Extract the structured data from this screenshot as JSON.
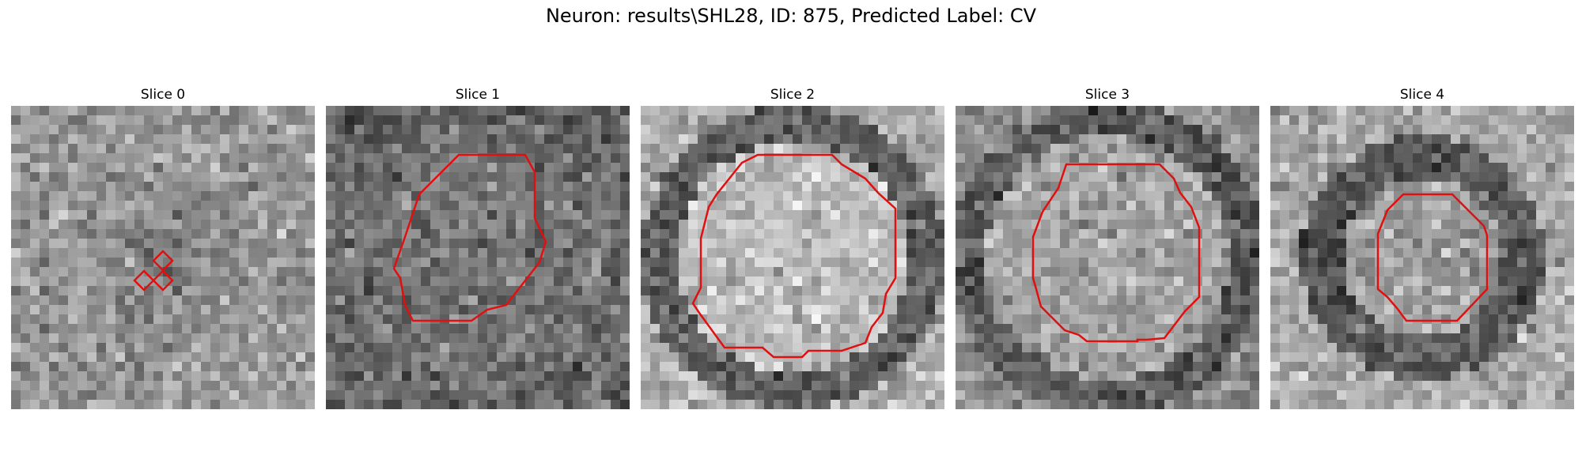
{
  "title": "Neuron: results\\SHL28, ID: 875, Predicted Label: CV",
  "colors": {
    "contour": "#e01010"
  },
  "slices": [
    {
      "label": "Slice 0"
    },
    {
      "label": "Slice 1"
    },
    {
      "label": "Slice 2"
    },
    {
      "label": "Slice 3"
    },
    {
      "label": "Slice 4"
    }
  ]
}
